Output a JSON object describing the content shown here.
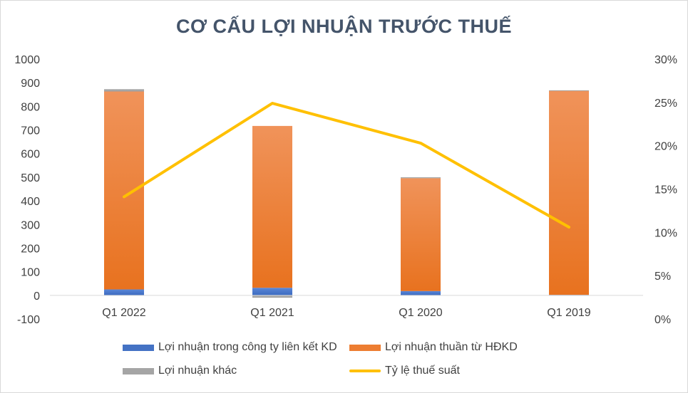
{
  "chart_data": {
    "type": "bar",
    "title": "CƠ CẤU LỢI NHUẬN TRƯỚC THUẾ",
    "categories": [
      "Q1 2022",
      "Q1 2021",
      "Q1 2020",
      "Q1 2019"
    ],
    "stacked": true,
    "series": [
      {
        "name": "Lợi nhuận trong công ty liên kết KD",
        "type": "bar",
        "axis": "left",
        "values": [
          25,
          32,
          18,
          2
        ],
        "color": "#4472c4"
      },
      {
        "name": "Lợi nhuận thuần từ HĐKD",
        "type": "bar",
        "axis": "left",
        "values": [
          838,
          685,
          478,
          865
        ],
        "color": "#ed7d31"
      },
      {
        "name": "Lợi nhuận khác",
        "type": "bar",
        "axis": "left",
        "values": [
          10,
          -10,
          4,
          1
        ],
        "color": "#a5a5a5"
      },
      {
        "name": "Tỷ lệ thuế suất",
        "type": "line",
        "axis": "right",
        "values": [
          0.141,
          0.249,
          0.203,
          0.106
        ],
        "color": "#ffc000"
      }
    ],
    "y_left": {
      "ylim": [
        -100,
        1000
      ],
      "ticks": [
        "-100",
        "0",
        "100",
        "200",
        "300",
        "400",
        "500",
        "600",
        "700",
        "800",
        "900",
        "1000"
      ]
    },
    "y_right": {
      "ylim": [
        0,
        0.3
      ],
      "ticks": [
        "0%",
        "5%",
        "10%",
        "15%",
        "20%",
        "25%",
        "30%"
      ]
    },
    "grid": false,
    "legend_position": "bottom"
  }
}
